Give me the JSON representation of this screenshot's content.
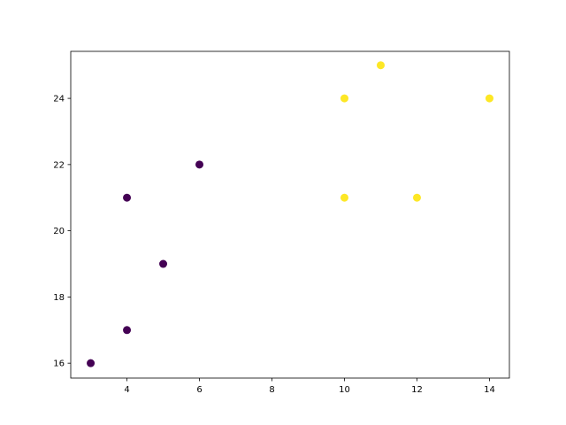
{
  "chart_data": {
    "type": "scatter",
    "title": "",
    "xlabel": "",
    "ylabel": "",
    "xlim": [
      2.45,
      14.55
    ],
    "ylim": [
      15.55,
      25.42
    ],
    "xticks": [
      4,
      6,
      8,
      10,
      12,
      14
    ],
    "yticks": [
      16,
      18,
      20,
      22,
      24
    ],
    "grid": false,
    "points": [
      {
        "x": 3,
        "y": 16,
        "cluster": 0
      },
      {
        "x": 4,
        "y": 17,
        "cluster": 0
      },
      {
        "x": 4,
        "y": 21,
        "cluster": 0
      },
      {
        "x": 5,
        "y": 19,
        "cluster": 0
      },
      {
        "x": 6,
        "y": 22,
        "cluster": 0
      },
      {
        "x": 10,
        "y": 24,
        "cluster": 1
      },
      {
        "x": 11,
        "y": 25,
        "cluster": 1
      },
      {
        "x": 14,
        "y": 24,
        "cluster": 1
      },
      {
        "x": 10,
        "y": 21,
        "cluster": 1
      },
      {
        "x": 12,
        "y": 21,
        "cluster": 1
      }
    ],
    "colors": [
      "#440154",
      "#fde725"
    ]
  }
}
